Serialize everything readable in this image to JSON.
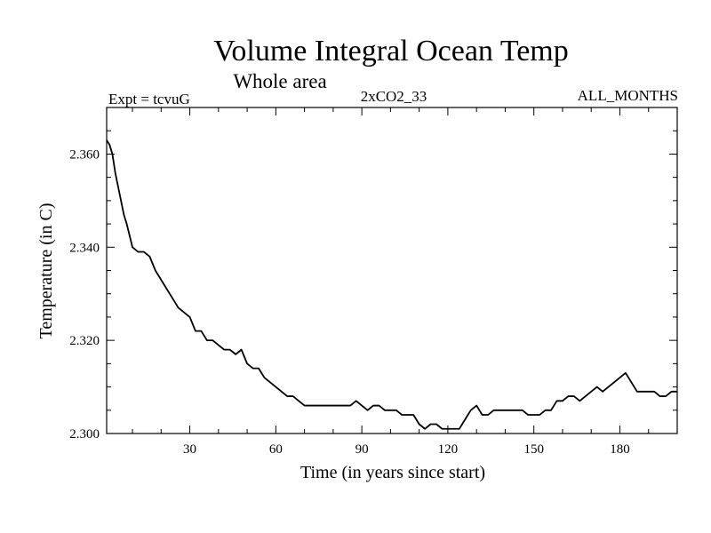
{
  "chart_data": {
    "type": "line",
    "title": "Volume Integral Ocean Temp",
    "subtitle": "Whole area",
    "expt_label": "Expt = tcvuG",
    "run_label": "2xCO2_33",
    "months_label": "ALL_MONTHS",
    "xlabel": "Time (in years since start)",
    "ylabel": "Temperature (in C)",
    "xlim": [
      1,
      200
    ],
    "ylim": [
      2.3,
      2.37
    ],
    "xticks": [
      30,
      60,
      90,
      120,
      150,
      180
    ],
    "xtick_labels": [
      "30",
      "60",
      "90",
      "120",
      "150",
      "180"
    ],
    "yticks": [
      2.3,
      2.32,
      2.34,
      2.36
    ],
    "ytick_labels": [
      "2.300",
      "2.320",
      "2.340",
      "2.360"
    ],
    "series": [
      {
        "x": [
          1,
          2,
          3,
          4,
          5,
          6,
          7,
          8,
          10,
          12,
          14,
          16,
          18,
          20,
          22,
          24,
          26,
          28,
          30,
          32,
          34,
          36,
          38,
          40,
          42,
          44,
          46,
          48,
          50,
          52,
          54,
          56,
          58,
          60,
          62,
          64,
          66,
          68,
          70,
          72,
          74,
          76,
          78,
          80,
          82,
          84,
          86,
          88,
          90,
          92,
          94,
          96,
          98,
          100,
          102,
          104,
          106,
          108,
          110,
          112,
          114,
          116,
          118,
          120,
          122,
          124,
          126,
          128,
          130,
          132,
          134,
          136,
          138,
          140,
          142,
          144,
          146,
          148,
          150,
          152,
          154,
          156,
          158,
          160,
          162,
          164,
          166,
          168,
          170,
          172,
          174,
          176,
          178,
          180,
          182,
          184,
          186,
          188,
          190,
          192,
          194,
          196,
          198,
          200
        ],
        "values": [
          2.363,
          2.362,
          2.36,
          2.356,
          2.353,
          2.35,
          2.347,
          2.345,
          2.34,
          2.339,
          2.339,
          2.338,
          2.335,
          2.333,
          2.331,
          2.329,
          2.327,
          2.326,
          2.325,
          2.322,
          2.322,
          2.32,
          2.32,
          2.319,
          2.318,
          2.318,
          2.317,
          2.318,
          2.315,
          2.314,
          2.314,
          2.312,
          2.311,
          2.31,
          2.309,
          2.308,
          2.308,
          2.307,
          2.306,
          2.306,
          2.306,
          2.306,
          2.306,
          2.306,
          2.306,
          2.306,
          2.306,
          2.307,
          2.306,
          2.305,
          2.306,
          2.306,
          2.305,
          2.305,
          2.305,
          2.304,
          2.304,
          2.304,
          2.302,
          2.301,
          2.302,
          2.302,
          2.301,
          2.301,
          2.301,
          2.301,
          2.303,
          2.305,
          2.306,
          2.304,
          2.304,
          2.305,
          2.305,
          2.305,
          2.305,
          2.305,
          2.305,
          2.304,
          2.304,
          2.304,
          2.305,
          2.305,
          2.307,
          2.307,
          2.308,
          2.308,
          2.307,
          2.308,
          2.309,
          2.31,
          2.309,
          2.31,
          2.311,
          2.312,
          2.313,
          2.311,
          2.309,
          2.309,
          2.309,
          2.309,
          2.308,
          2.308,
          2.309,
          2.309
        ]
      }
    ],
    "grid": false,
    "line_color": "#000000"
  }
}
